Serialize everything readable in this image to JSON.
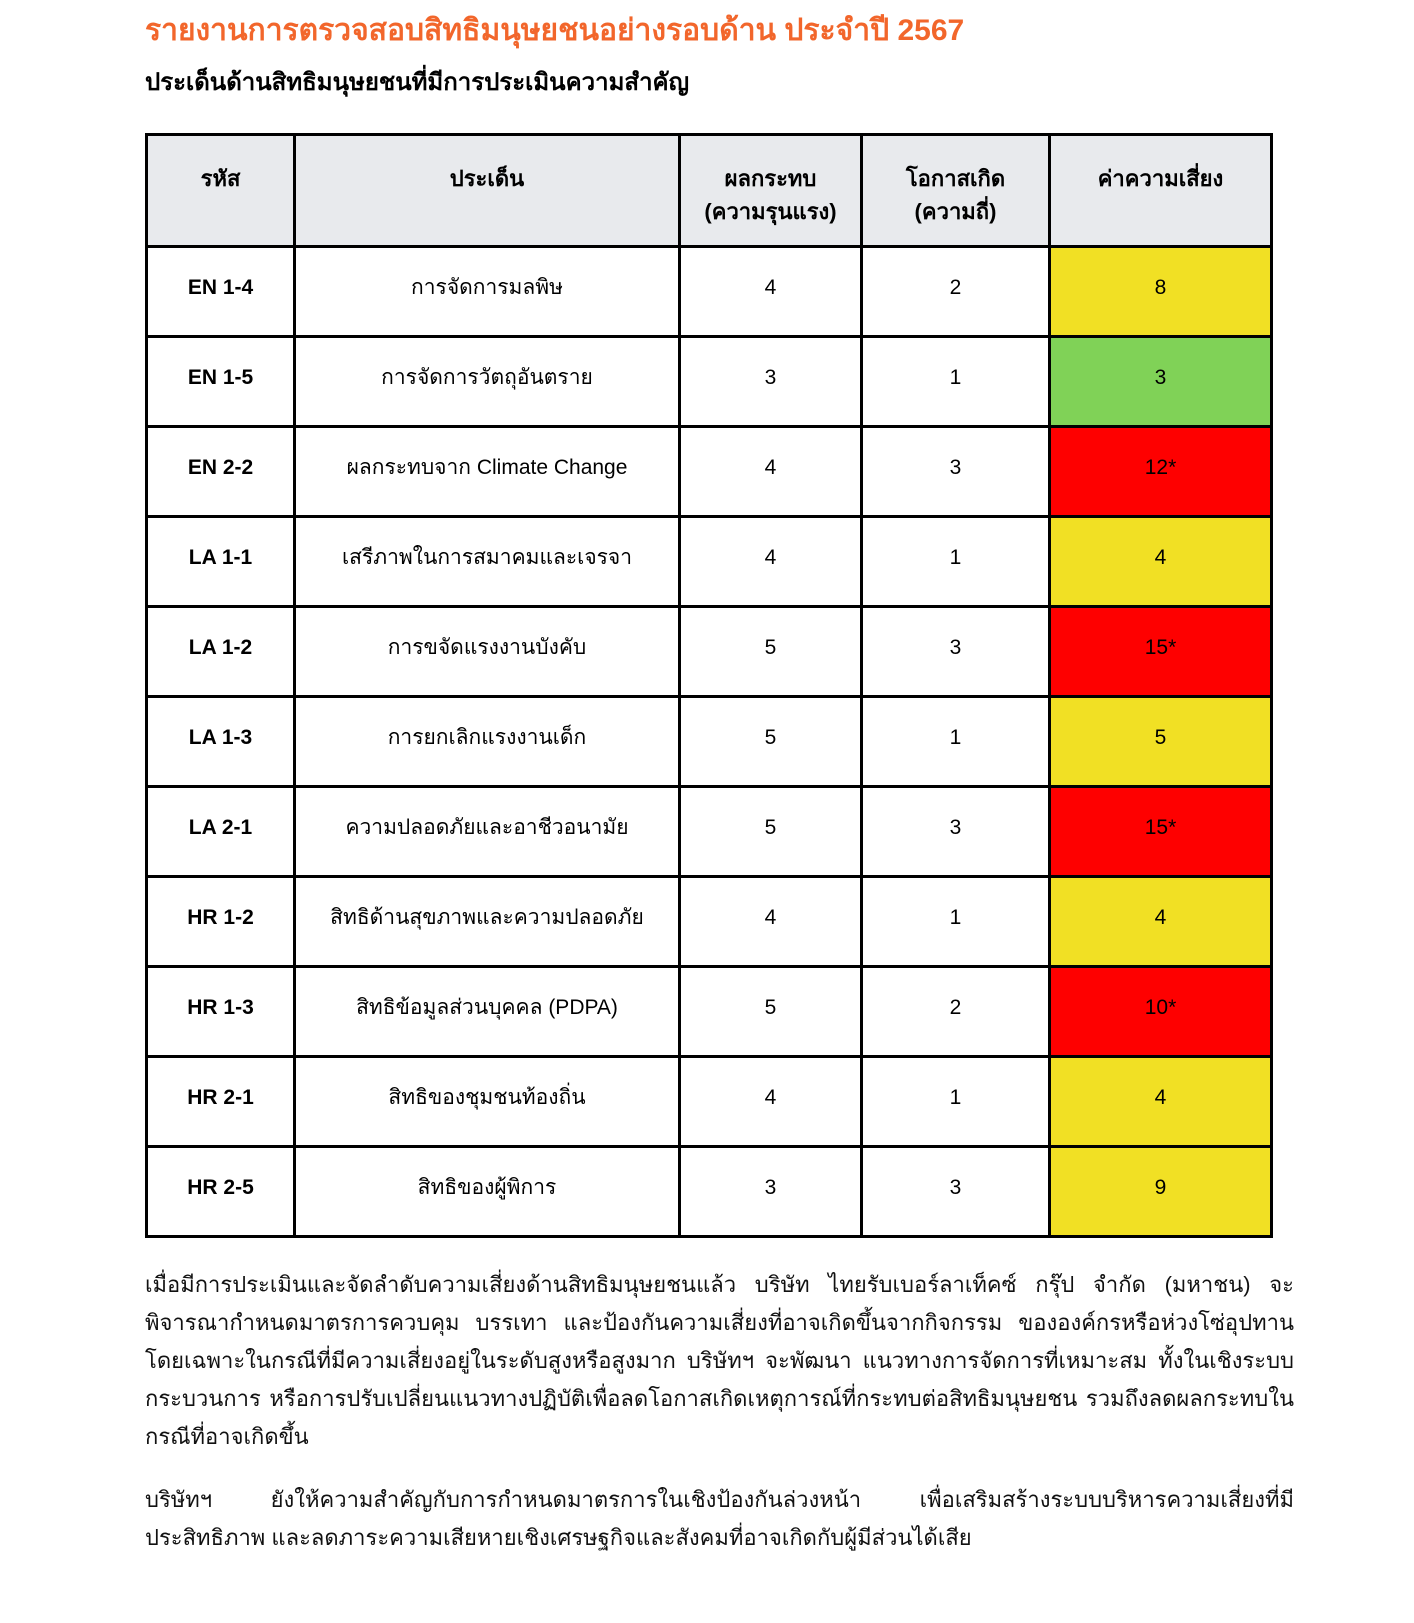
{
  "page": {
    "title": "รายงานการตรวจสอบสิทธิมนุษยชนอย่างรอบด้าน ประจำปี 2567",
    "subtitle": "ประเด็นด้านสิทธิมนุษยชนที่มีการประเมินความสำคัญ"
  },
  "table": {
    "headers": {
      "code": "รหัส",
      "issue": "ประเด็น",
      "impact": "ผลกระทบ\n(ความรุนแรง)",
      "likelihood": "โอกาสเกิด\n(ความถี่)",
      "risk": "ค่าความเสี่ยง"
    },
    "rows": [
      {
        "code": "EN 1-4",
        "issue": "การจัดการมลพิษ",
        "impact": "4",
        "likelihood": "2",
        "risk": "8",
        "risk_level": "yellow"
      },
      {
        "code": "EN 1-5",
        "issue": "การจัดการวัตถุอันตราย",
        "impact": "3",
        "likelihood": "1",
        "risk": "3",
        "risk_level": "green"
      },
      {
        "code": "EN 2-2",
        "issue": "ผลกระทบจาก Climate Change",
        "impact": "4",
        "likelihood": "3",
        "risk": "12*",
        "risk_level": "red"
      },
      {
        "code": "LA 1-1",
        "issue": "เสรีภาพในการสมาคมและเจรจา",
        "impact": "4",
        "likelihood": "1",
        "risk": "4",
        "risk_level": "yellow"
      },
      {
        "code": "LA 1-2",
        "issue": "การขจัดแรงงานบังคับ",
        "impact": "5",
        "likelihood": "3",
        "risk": "15*",
        "risk_level": "red"
      },
      {
        "code": "LA 1-3",
        "issue": "การยกเลิกแรงงานเด็ก",
        "impact": "5",
        "likelihood": "1",
        "risk": "5",
        "risk_level": "yellow"
      },
      {
        "code": "LA 2-1",
        "issue": "ความปลอดภัยและอาชีวอนามัย",
        "impact": "5",
        "likelihood": "3",
        "risk": "15*",
        "risk_level": "red"
      },
      {
        "code": "HR 1-2",
        "issue": "สิทธิด้านสุขภาพและความปลอดภัย",
        "impact": "4",
        "likelihood": "1",
        "risk": "4",
        "risk_level": "yellow"
      },
      {
        "code": "HR 1-3",
        "issue": "สิทธิข้อมูลส่วนบุคคล (PDPA)",
        "impact": "5",
        "likelihood": "2",
        "risk": "10*",
        "risk_level": "red"
      },
      {
        "code": "HR 2-1",
        "issue": "สิทธิของชุมชนท้องถิ่น",
        "impact": "4",
        "likelihood": "1",
        "risk": "4",
        "risk_level": "yellow"
      },
      {
        "code": "HR 2-5",
        "issue": "สิทธิของผู้พิการ",
        "impact": "3",
        "likelihood": "3",
        "risk": "9",
        "risk_level": "yellow"
      }
    ]
  },
  "paragraphs": [
    "เมื่อมีการประเมินและจัดลำดับความเสี่ยงด้านสิทธิมนุษยชนแล้ว บริษัท ไทยรับเบอร์ลาเท็คซ์ กรุ๊ป จำกัด (มหาชน) จะพิจารณากำหนดมาตรการควบคุม บรรเทา และป้องกันความเสี่ยงที่อาจเกิดขึ้นจากกิจกรรม ขององค์กรหรือห่วงโซ่อุปทาน โดยเฉพาะในกรณีที่มีความเสี่ยงอยู่ในระดับสูงหรือสูงมาก บริษัทฯ จะพัฒนา แนวทางการจัดการที่เหมาะสม ทั้งในเชิงระบบ กระบวนการ หรือการปรับเปลี่ยนแนวทางปฏิบัติเพื่อลดโอกาสเกิดเหตุการณ์ที่กระทบต่อสิทธิมนุษยชน รวมถึงลดผลกระทบในกรณีที่อาจเกิดขึ้น",
    "บริษัทฯ ยังให้ความสำคัญกับการกำหนดมาตรการในเชิงป้องกันล่วงหน้า เพื่อเสริมสร้างระบบบริหารความเสี่ยงที่มีประสิทธิภาพ และลดภาระความเสียหายเชิงเศรษฐกิจและสังคมที่อาจเกิดกับผู้มีส่วนได้เสีย"
  ],
  "colors": {
    "title_orange": "#F2662B",
    "header_bg": "#E8EAED",
    "risk_yellow": "#F1E024",
    "risk_green": "#80D257",
    "risk_red": "#FE0000",
    "border": "#000000"
  }
}
